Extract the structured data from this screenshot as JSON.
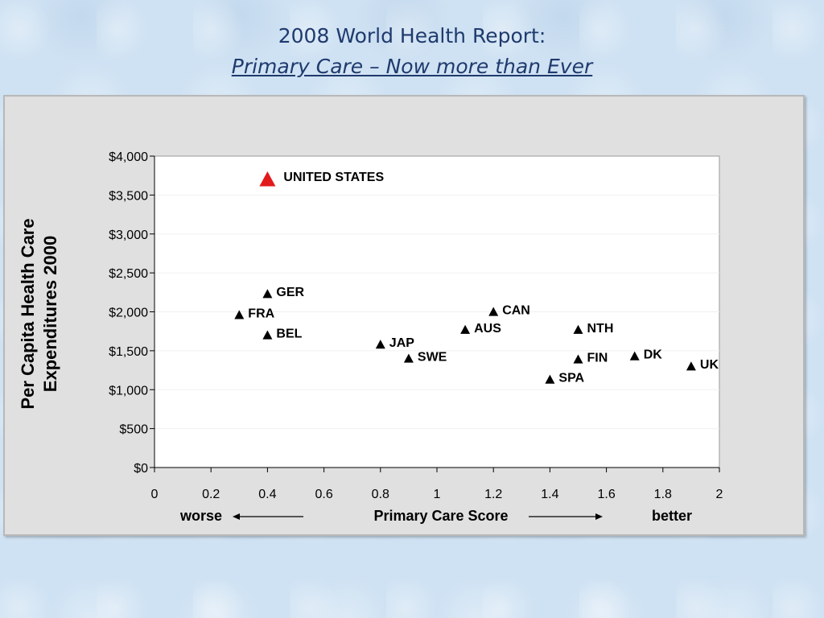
{
  "slide": {
    "title_line1": "2008 World Health Report:",
    "title_line2": "Primary Care – Now more than Ever"
  },
  "chart_data": {
    "type": "scatter",
    "ylabel_line1": "Per Capita Health Care",
    "ylabel_line2": "Expenditures 2000",
    "xlabel": "Primary Care Score",
    "x_left_note": "worse",
    "x_right_note": "better",
    "xlim": [
      0,
      2
    ],
    "ylim": [
      0,
      4000
    ],
    "xticks": [
      "0",
      "0.2",
      "0.4",
      "0.6",
      "0.8",
      "1",
      "1.2",
      "1.4",
      "1.6",
      "1.8",
      "2"
    ],
    "yticks": [
      "$0",
      "$500",
      "$1,000",
      "$1,500",
      "$2,000",
      "$2,500",
      "$3,000",
      "$3,500",
      "$4,000"
    ],
    "grid": "horizontal",
    "marker": "triangle",
    "colors": {
      "highlight": "#e31a1c",
      "default": "#000000"
    },
    "points": [
      {
        "label": "UNITED STATES",
        "x": 0.4,
        "y": 3700,
        "highlight": true
      },
      {
        "label": "GER",
        "x": 0.4,
        "y": 2230
      },
      {
        "label": "FRA",
        "x": 0.3,
        "y": 1960
      },
      {
        "label": "BEL",
        "x": 0.4,
        "y": 1700
      },
      {
        "label": "JAP",
        "x": 0.8,
        "y": 1580
      },
      {
        "label": "SWE",
        "x": 0.9,
        "y": 1400
      },
      {
        "label": "CAN",
        "x": 1.2,
        "y": 2000
      },
      {
        "label": "AUS",
        "x": 1.1,
        "y": 1770
      },
      {
        "label": "NTH",
        "x": 1.5,
        "y": 1770
      },
      {
        "label": "FIN",
        "x": 1.5,
        "y": 1390
      },
      {
        "label": "SPA",
        "x": 1.4,
        "y": 1130
      },
      {
        "label": "DK",
        "x": 1.7,
        "y": 1430
      },
      {
        "label": "UK",
        "x": 1.9,
        "y": 1300
      }
    ]
  }
}
